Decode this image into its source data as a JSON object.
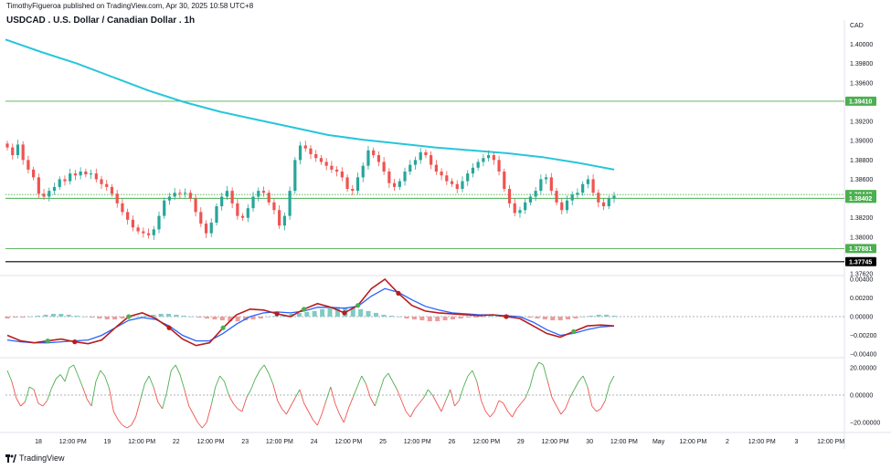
{
  "header": {
    "publisher": "TimothyFigueroa published on TradingView.com, Apr 30, 2025 10:58 UTC+8",
    "symbol": "USDCAD . U.S. Dollar / Canadian Dollar . 1h"
  },
  "footer": {
    "brand": "TradingView"
  },
  "colors": {
    "ma_line": "#26c6da",
    "candle_up": "#26a69a",
    "candle_down": "#ef5350",
    "horizontal_level": "#4caf50",
    "support_black": "#000000",
    "label_green": "#4caf50",
    "label_black": "#000000"
  },
  "chart_data": [
    {
      "type": "candlestick",
      "title": "USDCAD . U.S. Dollar / Canadian Dollar . 1h",
      "currency": "CAD",
      "ylim": [
        1.3762,
        1.401
      ],
      "y_ticks": [
        "1.40000",
        "1.39800",
        "1.39600",
        "1.39200",
        "1.39000",
        "1.38800",
        "1.38600",
        "1.38200",
        "1.38000",
        "1.37620"
      ],
      "x_ticks": [
        "18",
        "12:00 PM",
        "19",
        "12:00 PM",
        "22",
        "12:00 PM",
        "23",
        "12:00 PM",
        "24",
        "12:00 PM",
        "25",
        "12:00 PM",
        "26",
        "12:00 PM",
        "29",
        "12:00 PM",
        "30",
        "12:00 PM",
        "May",
        "12:00 PM",
        "2",
        "12:00 PM",
        "3",
        "12:00 PM"
      ],
      "horizontal_levels": [
        {
          "value": 1.3941,
          "label": "1.39410",
          "color": "#4caf50"
        },
        {
          "value": 1.38442,
          "label": "1.38442",
          "color": "#4caf50",
          "style": "dotted"
        },
        {
          "value": 1.38402,
          "label": "1.38402",
          "color": "#4caf50"
        },
        {
          "value": 1.37881,
          "label": "1.37881",
          "color": "#4caf50"
        },
        {
          "value": 1.37745,
          "label": "1.37745",
          "color": "#000000"
        }
      ],
      "moving_average": [
        [
          0,
          1.4005
        ],
        [
          10,
          1.3992
        ],
        [
          20,
          1.398
        ],
        [
          30,
          1.3966
        ],
        [
          40,
          1.3952
        ],
        [
          50,
          1.394
        ],
        [
          60,
          1.393
        ],
        [
          70,
          1.3922
        ],
        [
          80,
          1.3914
        ],
        [
          90,
          1.3906
        ],
        [
          100,
          1.3901
        ],
        [
          110,
          1.3897
        ],
        [
          120,
          1.3893
        ],
        [
          130,
          1.389
        ],
        [
          140,
          1.3887
        ],
        [
          150,
          1.3883
        ],
        [
          160,
          1.3877
        ],
        [
          170,
          1.387
        ]
      ],
      "candles_close": [
        1.3893,
        1.3885,
        1.3896,
        1.388,
        1.387,
        1.3862,
        1.3845,
        1.3842,
        1.3848,
        1.3852,
        1.386,
        1.3858,
        1.3866,
        1.3864,
        1.3868,
        1.3865,
        1.3866,
        1.386,
        1.3855,
        1.3852,
        1.3845,
        1.3835,
        1.3826,
        1.3818,
        1.381,
        1.3806,
        1.3804,
        1.3802,
        1.3808,
        1.3822,
        1.3838,
        1.3842,
        1.3846,
        1.3845,
        1.3846,
        1.384,
        1.3826,
        1.3814,
        1.3804,
        1.3815,
        1.3832,
        1.3842,
        1.3848,
        1.3835,
        1.3822,
        1.382,
        1.383,
        1.3842,
        1.3848,
        1.3846,
        1.3836,
        1.3828,
        1.3812,
        1.3822,
        1.3848,
        1.388,
        1.3895,
        1.3892,
        1.3886,
        1.3882,
        1.3878,
        1.3874,
        1.387,
        1.3868,
        1.3862,
        1.385,
        1.3848,
        1.3862,
        1.3874,
        1.389,
        1.3885,
        1.3878,
        1.3868,
        1.3856,
        1.3852,
        1.3858,
        1.3868,
        1.3875,
        1.388,
        1.3888,
        1.3885,
        1.3875,
        1.3868,
        1.3864,
        1.3858,
        1.3855,
        1.385,
        1.3858,
        1.3866,
        1.3872,
        1.3878,
        1.3882,
        1.3885,
        1.388,
        1.3868,
        1.385,
        1.3835,
        1.3825,
        1.3828,
        1.3836,
        1.3842,
        1.3848,
        1.386,
        1.3862,
        1.3848,
        1.3836,
        1.3828,
        1.3838,
        1.3844,
        1.3846,
        1.3855,
        1.386,
        1.3846,
        1.3836,
        1.3832,
        1.384,
        1.3843
      ]
    },
    {
      "type": "histogram_lines",
      "title": "",
      "ylim": [
        -0.0042,
        0.0042
      ],
      "y_ticks": [
        "0.00400",
        "0.00200",
        "0.00000",
        "−0.00200",
        "−0.00400"
      ],
      "histogram": [
        -0.0002,
        -0.0001,
        -0.0001,
        0.0,
        0.0001,
        0.0002,
        0.0003,
        0.0003,
        0.0002,
        0.0001,
        0.0,
        -0.0001,
        -0.0002,
        -0.0003,
        -0.0003,
        -0.0002,
        -0.0001,
        0.0,
        0.0001,
        0.0002,
        0.0003,
        0.0003,
        0.0002,
        0.0001,
        0.0,
        -0.0001,
        -0.0002,
        -0.0003,
        -0.0004,
        -0.0005,
        -0.0005,
        -0.0004,
        -0.0003,
        -0.0002,
        0.0,
        0.0001,
        0.0002,
        0.0003,
        0.0004,
        0.0005,
        0.0006,
        0.0008,
        0.0009,
        0.001,
        0.001,
        0.0009,
        0.0008,
        0.0006,
        0.0004,
        0.0002,
        0.0001,
        0.0,
        -0.0002,
        -0.0003,
        -0.0004,
        -0.0005,
        -0.0005,
        -0.0004,
        -0.0003,
        -0.0002,
        -0.0001,
        -0.0001,
        0.0,
        0.0001,
        0.0001,
        0.0002,
        0.0001,
        0.0,
        -0.0001,
        -0.0002,
        -0.0003,
        -0.0004,
        -0.0004,
        -0.0003,
        -0.0002,
        0.0,
        0.0001,
        0.0002,
        0.0002,
        0.0001
      ],
      "macd": [
        -0.002,
        -0.0026,
        -0.0028,
        -0.0026,
        -0.0024,
        -0.0027,
        -0.0029,
        -0.0025,
        -0.0012,
        0.0,
        0.0004,
        -0.0002,
        -0.0012,
        -0.0024,
        -0.0031,
        -0.0028,
        -0.0012,
        0.0002,
        0.0008,
        0.0007,
        0.0003,
        0.0,
        0.0008,
        0.0014,
        0.001,
        0.0004,
        0.0012,
        0.003,
        0.004,
        0.0025,
        0.0012,
        0.0006,
        0.0004,
        0.0003,
        0.0002,
        0.0001,
        0.0002,
        0.0,
        -0.0002,
        -0.001,
        -0.0018,
        -0.0022,
        -0.0016,
        -0.001,
        -0.0009,
        -0.001
      ],
      "signal": [
        -0.0025,
        -0.0027,
        -0.0028,
        -0.0028,
        -0.0027,
        -0.0026,
        -0.0025,
        -0.002,
        -0.0012,
        -0.0004,
        -0.0001,
        -0.0003,
        -0.001,
        -0.002,
        -0.0026,
        -0.0026,
        -0.0018,
        -0.0008,
        0.0,
        0.0004,
        0.0005,
        0.0004,
        0.0006,
        0.001,
        0.001,
        0.0009,
        0.0011,
        0.0022,
        0.003,
        0.0026,
        0.0018,
        0.0011,
        0.0007,
        0.0004,
        0.0003,
        0.0002,
        0.0002,
        0.0001,
        0.0,
        -0.0006,
        -0.0014,
        -0.002,
        -0.0018,
        -0.0014,
        -0.0011,
        -0.001
      ]
    },
    {
      "type": "line",
      "title": "",
      "ylim": [
        -26,
        26
      ],
      "y_ticks": [
        "20.00000",
        "0.00000",
        "−20.00000"
      ],
      "oscillator": [
        18,
        10,
        -2,
        -8,
        -5,
        6,
        4,
        -6,
        -8,
        -4,
        5,
        12,
        15,
        10,
        20,
        22,
        14,
        6,
        -3,
        -8,
        10,
        18,
        14,
        5,
        -12,
        -18,
        -22,
        -24,
        -22,
        -16,
        -4,
        8,
        14,
        6,
        -5,
        -10,
        2,
        18,
        22,
        15,
        4,
        -8,
        -14,
        -20,
        -24,
        -20,
        -8,
        6,
        14,
        10,
        0,
        -6,
        -10,
        -12,
        -2,
        4,
        12,
        18,
        22,
        16,
        8,
        -4,
        -10,
        -14,
        -8,
        -2,
        4,
        -6,
        -12,
        -18,
        -22,
        -14,
        -4,
        6,
        -6,
        -14,
        -20,
        -10,
        -2,
        6,
        14,
        8,
        -2,
        -8,
        2,
        12,
        16,
        10,
        4,
        -4,
        -12,
        -16,
        -10,
        -6,
        -2,
        4,
        0,
        -6,
        -12,
        -4,
        4,
        -8,
        -4,
        6,
        14,
        18,
        10,
        -4,
        -12,
        -16,
        -12,
        -4,
        -6,
        -12,
        -16,
        -10,
        -6,
        -2,
        6,
        18,
        24,
        22,
        10,
        -2,
        -8,
        -14,
        -10,
        -2,
        4,
        10,
        14,
        6,
        -8,
        -12,
        -10,
        -4,
        8,
        14
      ]
    }
  ]
}
